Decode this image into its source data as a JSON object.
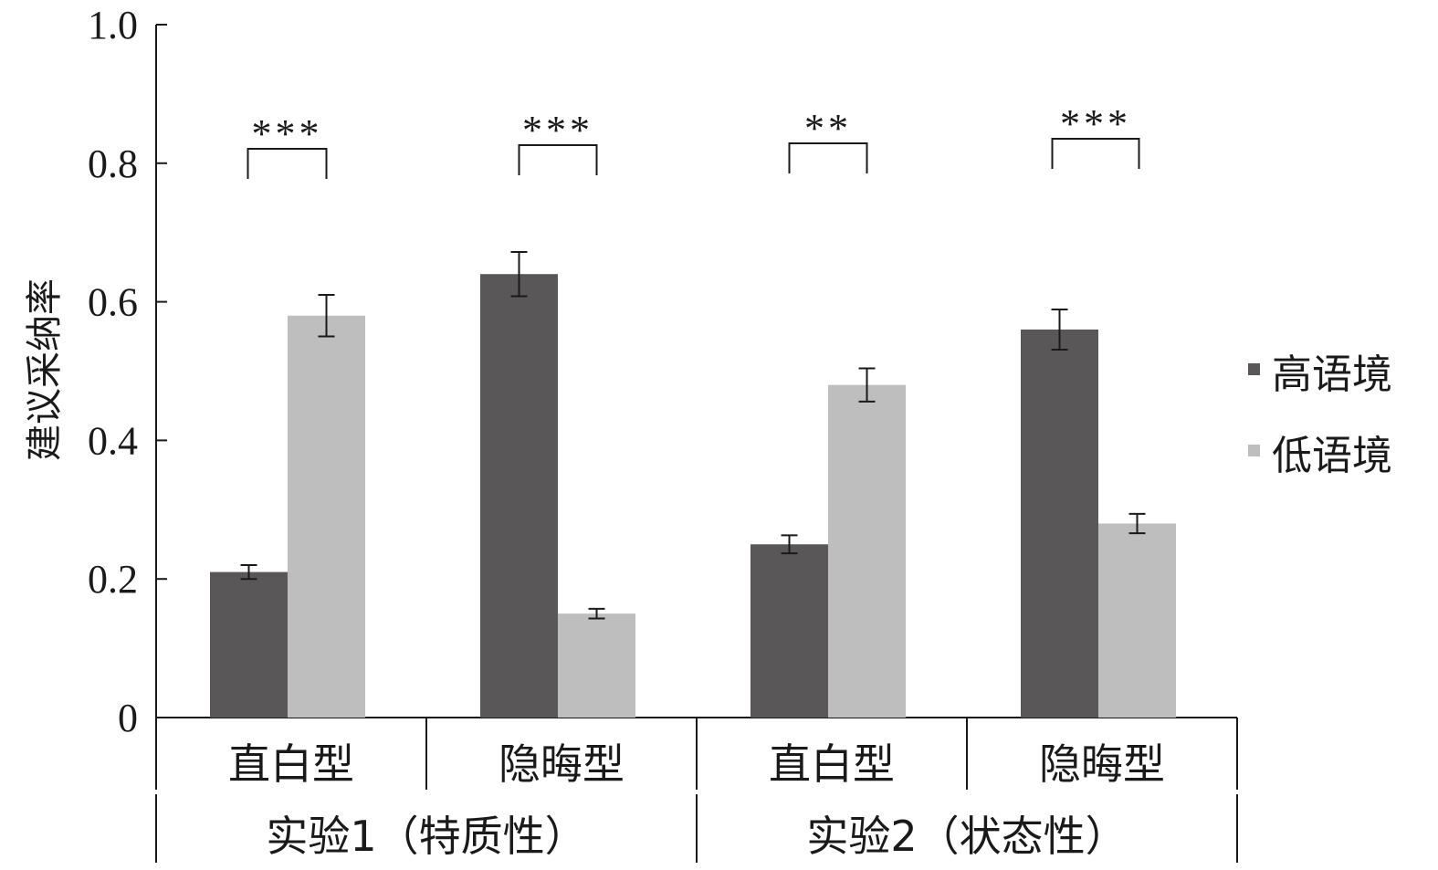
{
  "chart_data": {
    "type": "bar",
    "title": "",
    "xlabel": "",
    "ylabel": "建议采纳率",
    "ylim": [
      0,
      1.0
    ],
    "yticks": [
      "0",
      "0.2",
      "0.4",
      "0.6",
      "0.8",
      "1.0"
    ],
    "ytick_values": [
      0,
      0.2,
      0.4,
      0.6,
      0.8,
      1.0
    ],
    "grid": false,
    "legend_position": "right",
    "categories": [
      "直白型",
      "隐晦型",
      "直白型",
      "隐晦型"
    ],
    "category_groups": [
      {
        "label": "实验1（特质性）",
        "span": 2
      },
      {
        "label": "实验2（状态性）",
        "span": 2
      }
    ],
    "series": [
      {
        "name": "高语境",
        "color": "#595758",
        "values": [
          0.21,
          0.64,
          0.25,
          0.56
        ],
        "errors": [
          0.01,
          0.032,
          0.013,
          0.029
        ]
      },
      {
        "name": "低语境",
        "color": "#bfbebf",
        "values": [
          0.58,
          0.15,
          0.48,
          0.28
        ],
        "errors": [
          0.03,
          0.007,
          0.024,
          0.014
        ]
      }
    ],
    "significance": [
      "***",
      "***",
      "**",
      "***"
    ]
  }
}
